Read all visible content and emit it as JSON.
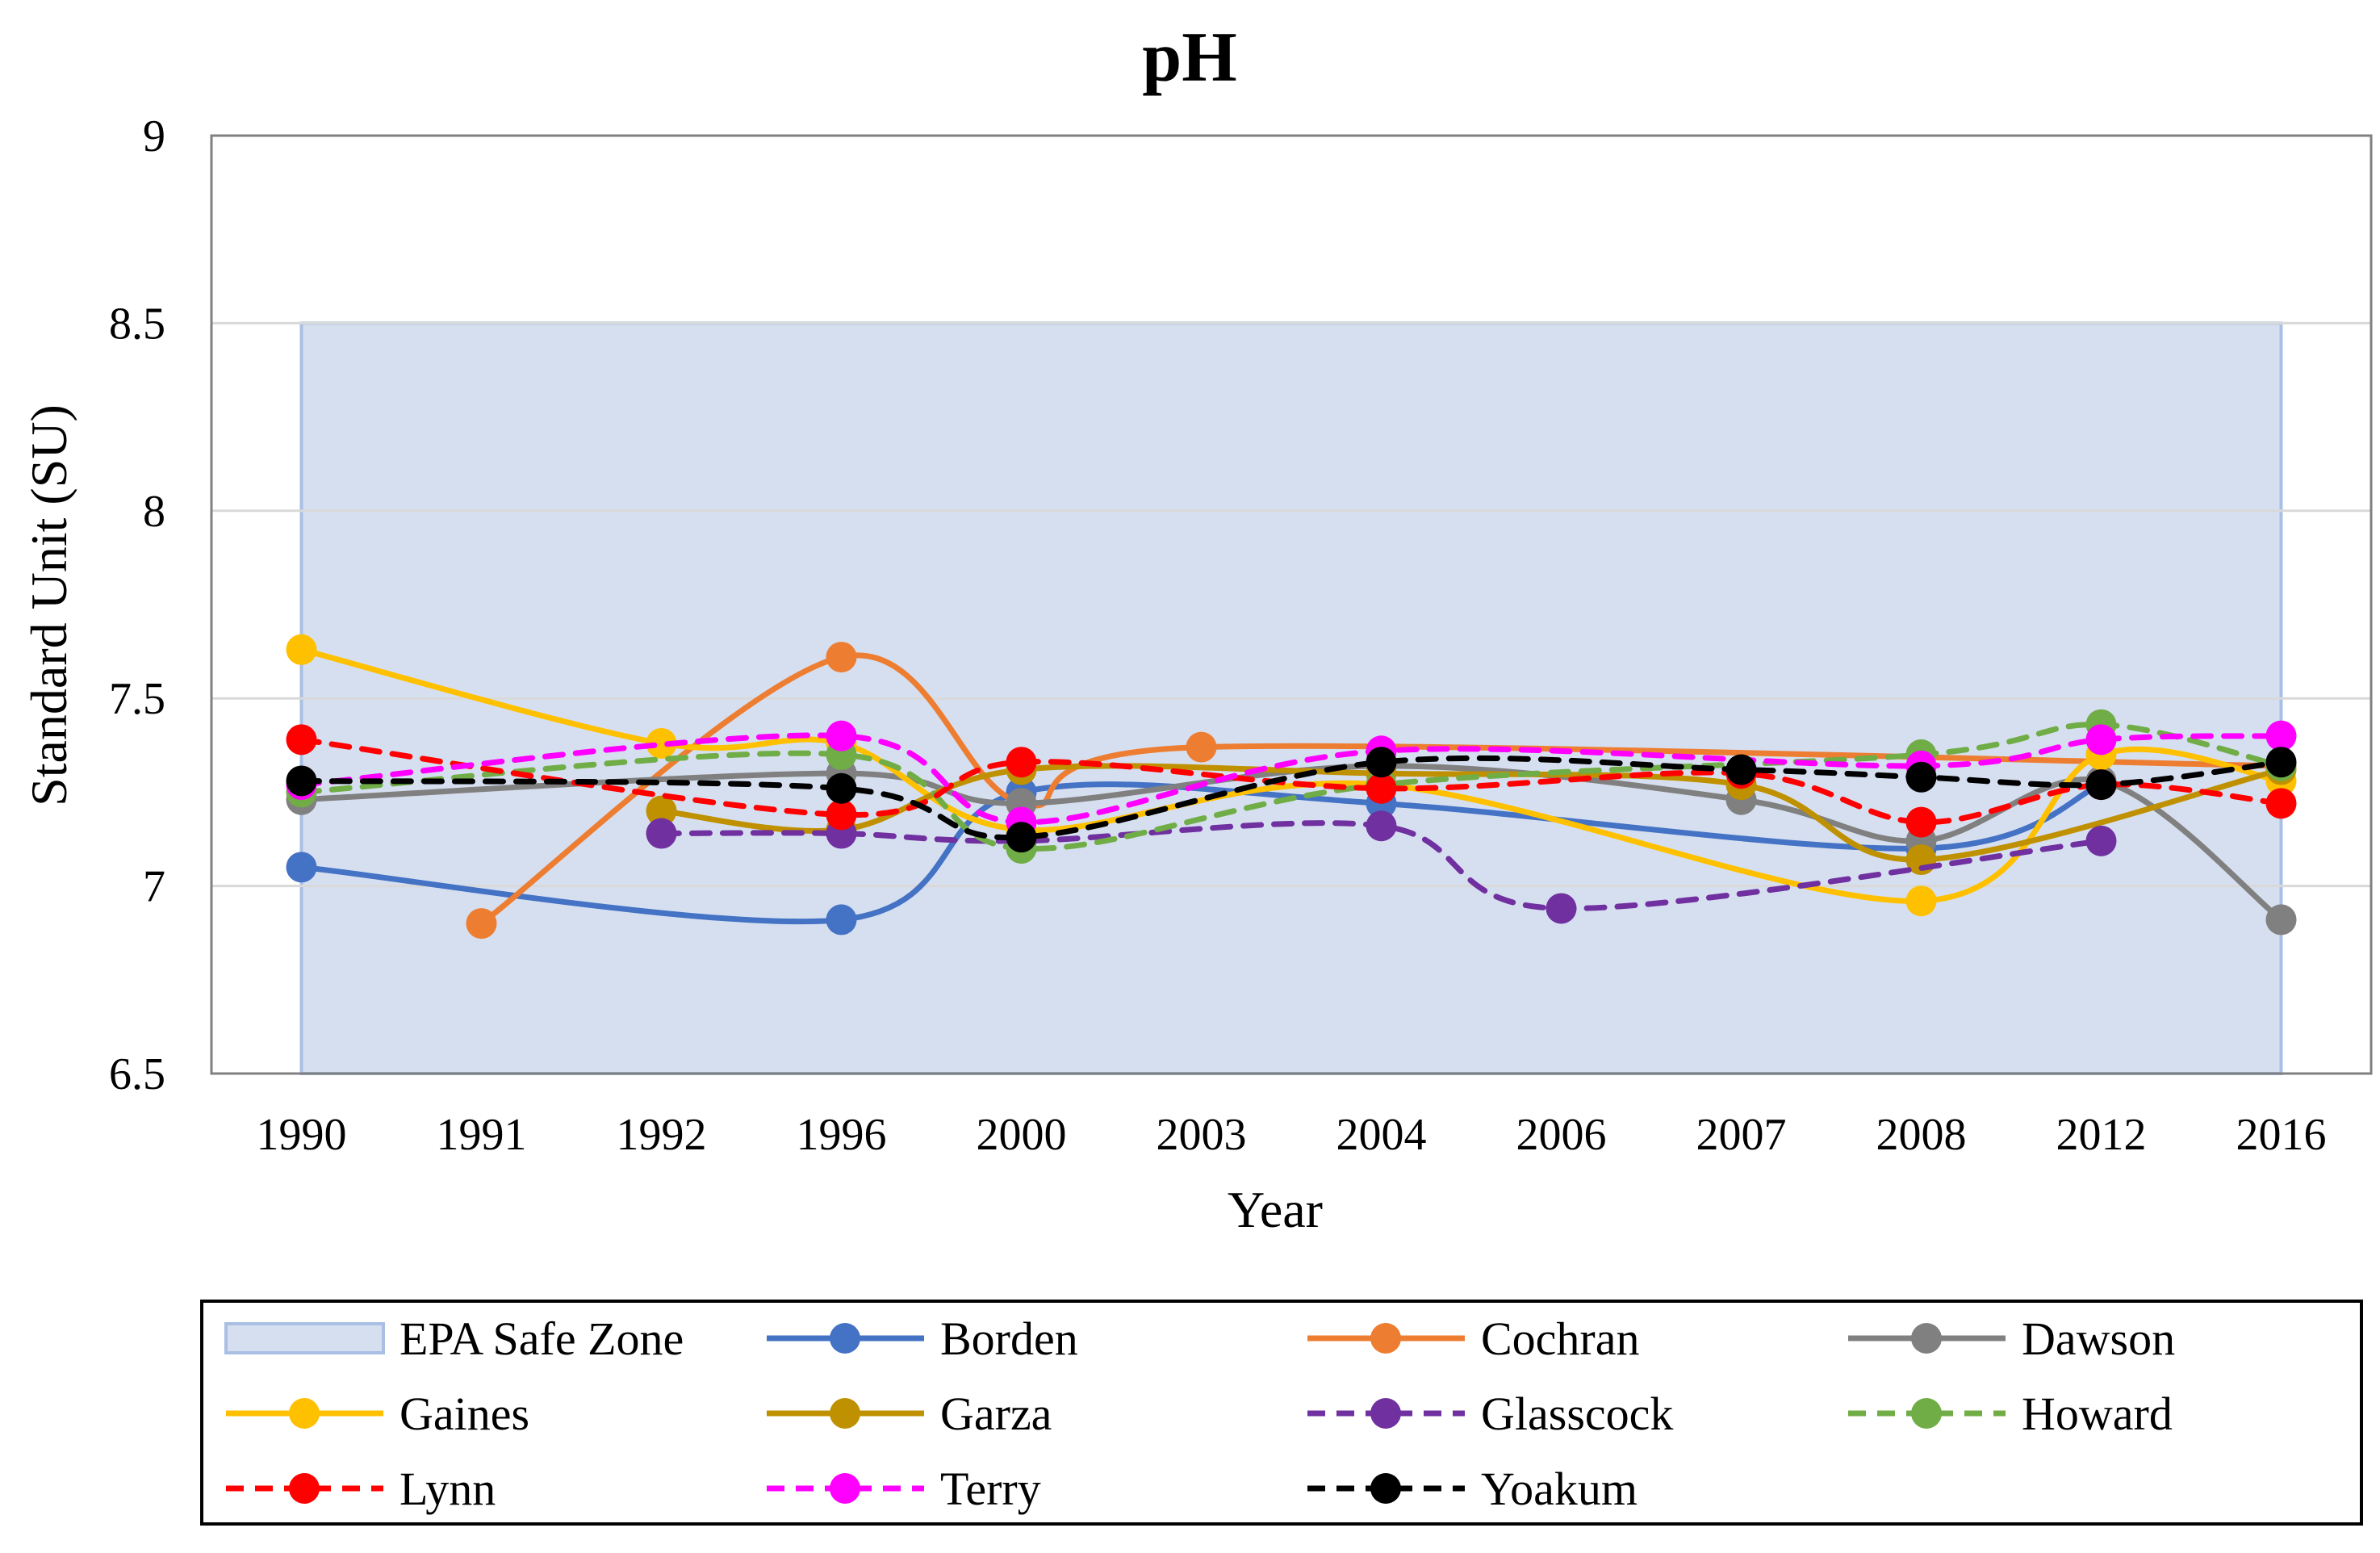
{
  "chart_data": {
    "type": "line",
    "title": "pH",
    "xlabel": "Year",
    "ylabel": "Standard Unit (SU)",
    "ylim": [
      6.5,
      9
    ],
    "yticks": [
      "6.5",
      "7",
      "7.5",
      "8",
      "8.5",
      "9"
    ],
    "categories": [
      "1990",
      "1991",
      "1992",
      "1996",
      "2000",
      "2003",
      "2004",
      "2006",
      "2007",
      "2008",
      "2012",
      "2016"
    ],
    "safe_zone": {
      "name": "EPA Safe Zone",
      "ymin": 6.5,
      "ymax": 8.5,
      "color": "#D6DFF0",
      "border": "#A9BFE3"
    },
    "grid": true,
    "legend_position": "bottom",
    "series": [
      {
        "name": "Borden",
        "color": "#4472C4",
        "dashed": false,
        "values": [
          7.05,
          null,
          null,
          6.91,
          7.25,
          null,
          7.22,
          null,
          null,
          7.1,
          7.27,
          null
        ]
      },
      {
        "name": "Cochran",
        "color": "#ED7D31",
        "dashed": false,
        "values": [
          null,
          6.9,
          null,
          7.61,
          7.22,
          7.37,
          null,
          null,
          null,
          null,
          null,
          7.32
        ]
      },
      {
        "name": "Dawson",
        "color": "#808080",
        "dashed": false,
        "values": [
          7.23,
          null,
          null,
          7.3,
          7.22,
          null,
          7.32,
          null,
          7.23,
          7.12,
          7.28,
          6.91
        ]
      },
      {
        "name": "Gaines",
        "color": "#FFC000",
        "dashed": false,
        "values": [
          7.63,
          null,
          7.38,
          7.38,
          7.15,
          null,
          7.27,
          null,
          null,
          6.96,
          7.35,
          7.28
        ]
      },
      {
        "name": "Garza",
        "color": "#BF9000",
        "dashed": false,
        "values": [
          null,
          null,
          7.2,
          7.15,
          7.31,
          null,
          7.3,
          null,
          7.27,
          7.07,
          null,
          7.31
        ]
      },
      {
        "name": "Glasscock",
        "color": "#7030A0",
        "dashed": true,
        "values": [
          null,
          null,
          7.14,
          7.14,
          7.12,
          null,
          7.16,
          6.94,
          null,
          null,
          7.12,
          null
        ]
      },
      {
        "name": "Howard",
        "color": "#70AD47",
        "dashed": true,
        "values": [
          7.25,
          null,
          null,
          7.35,
          7.1,
          null,
          7.27,
          null,
          null,
          7.35,
          7.43,
          7.32
        ]
      },
      {
        "name": "Lynn",
        "color": "#FF0000",
        "dashed": true,
        "values": [
          7.39,
          null,
          null,
          7.19,
          7.33,
          null,
          7.26,
          null,
          7.3,
          7.17,
          7.27,
          7.22
        ]
      },
      {
        "name": "Terry",
        "color": "#FF00FF",
        "dashed": true,
        "values": [
          7.27,
          null,
          null,
          7.4,
          7.17,
          null,
          7.36,
          null,
          null,
          7.32,
          7.39,
          7.4
        ]
      },
      {
        "name": "Yoakum",
        "color": "#000000",
        "dashed": true,
        "values": [
          7.28,
          null,
          null,
          7.26,
          7.13,
          null,
          7.33,
          null,
          7.31,
          7.29,
          7.27,
          7.33
        ]
      }
    ]
  }
}
